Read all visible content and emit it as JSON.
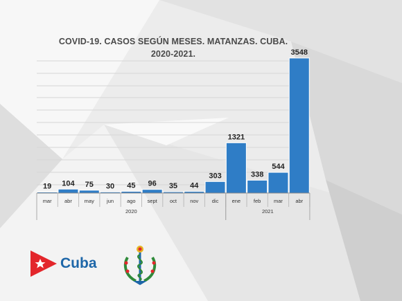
{
  "chart_data": {
    "type": "bar",
    "title": "COVID-19. CASOS SEGÚN MESES. MATANZAS. CUBA.",
    "subtitle": "2020-2021.",
    "categories": [
      "mar",
      "abr",
      "may",
      "jun",
      "ago",
      "sept",
      "oct",
      "nov",
      "dic",
      "ene",
      "feb",
      "mar",
      "abr"
    ],
    "values": [
      19,
      104,
      75,
      30,
      45,
      96,
      35,
      44,
      303,
      1321,
      338,
      544,
      3548
    ],
    "year_groups": [
      {
        "label": "2020",
        "start": 0,
        "end": 8
      },
      {
        "label": "2021",
        "start": 9,
        "end": 12
      }
    ],
    "ylim": [
      0,
      3800
    ],
    "grid": true,
    "bar_color": "#2f7dc6",
    "xlabel": "",
    "ylabel": ""
  },
  "branding": {
    "country_text": "Cuba",
    "flag_colors": {
      "red": "#e3262b",
      "blue": "#1d66a8"
    }
  }
}
